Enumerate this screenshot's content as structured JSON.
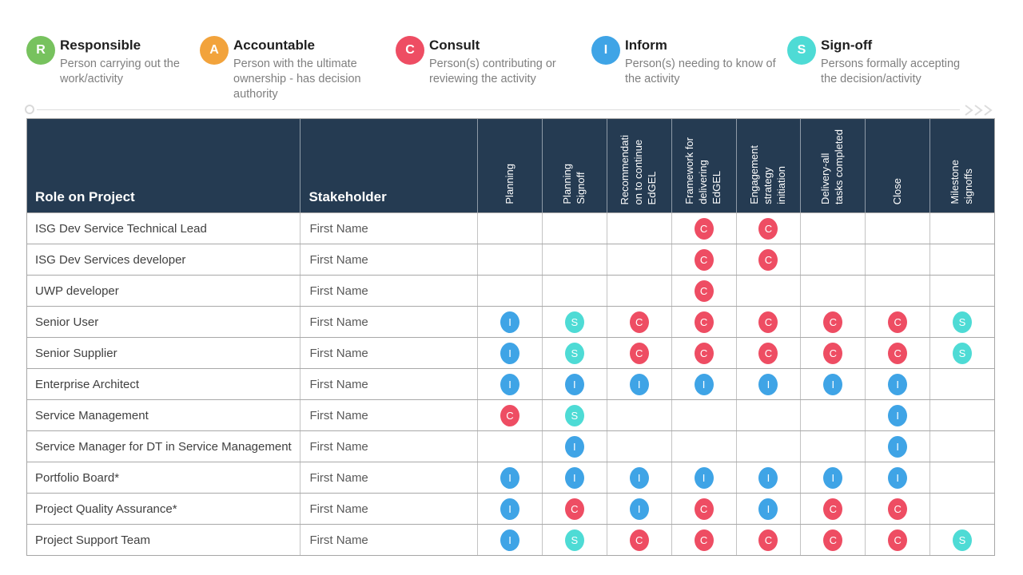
{
  "legend": {
    "items": [
      {
        "letter": "R",
        "title": "Responsible",
        "description": "Person carrying out the work/activity",
        "color": "#77C25E"
      },
      {
        "letter": "A",
        "title": "Accountable",
        "description": "Person with the ultimate ownership - has decision authority",
        "color": "#F2A33C"
      },
      {
        "letter": "C",
        "title": "Consult",
        "description": "Person(s) contributing or reviewing the activity",
        "color": "#EE4D63"
      },
      {
        "letter": "I",
        "title": "Inform",
        "description": "Person(s) needing to know of the activity",
        "color": "#3FA4E6"
      },
      {
        "letter": "S",
        "title": "Sign-off",
        "description": "Persons formally accepting the decision/activity",
        "color": "#4EDBD5"
      }
    ]
  },
  "table": {
    "role_header": "Role on Project",
    "stakeholder_header": "Stakeholder",
    "activity_columns": [
      "Planning",
      "Planning\nSignoff",
      "Recommendati\non to continue\nEdGEL",
      "Framework for\ndelivering\nEdGEL",
      "Engagement\nstrategy\ninitiation",
      "Delivery-all\ntasks completed",
      "Close",
      "Milestone\nsignoffs"
    ],
    "rows": [
      {
        "role": "ISG Dev Service Technical Lead",
        "stakeholder": "First Name",
        "cells": [
          "",
          "",
          "",
          "C",
          "C",
          "",
          "",
          ""
        ]
      },
      {
        "role": "ISG Dev Services developer",
        "stakeholder": "First Name",
        "cells": [
          "",
          "",
          "",
          "C",
          "C",
          "",
          "",
          ""
        ]
      },
      {
        "role": "UWP developer",
        "stakeholder": "First Name",
        "cells": [
          "",
          "",
          "",
          "C",
          "",
          "",
          "",
          ""
        ]
      },
      {
        "role": "Senior User",
        "stakeholder": "First Name",
        "cells": [
          "I",
          "S",
          "C",
          "C",
          "C",
          "C",
          "C",
          "S"
        ]
      },
      {
        "role": "Senior Supplier",
        "stakeholder": "First Name",
        "cells": [
          "I",
          "S",
          "C",
          "C",
          "C",
          "C",
          "C",
          "S"
        ]
      },
      {
        "role": "Enterprise Architect",
        "stakeholder": "First Name",
        "cells": [
          "I",
          "I",
          "I",
          "I",
          "I",
          "I",
          "I",
          ""
        ]
      },
      {
        "role": "Service Management",
        "stakeholder": "First Name",
        "cells": [
          "C",
          "S",
          "",
          "",
          "",
          "",
          "I",
          ""
        ]
      },
      {
        "role": "Service Manager for DT in Service Management",
        "stakeholder": "First Name",
        "cells": [
          "",
          "I",
          "",
          "",
          "",
          "",
          "I",
          ""
        ]
      },
      {
        "role": "Portfolio Board*",
        "stakeholder": "First Name",
        "cells": [
          "I",
          "I",
          "I",
          "I",
          "I",
          "I",
          "I",
          ""
        ]
      },
      {
        "role": "Project Quality Assurance*",
        "stakeholder": "First Name",
        "cells": [
          "I",
          "C",
          "I",
          "C",
          "I",
          "C",
          "C",
          ""
        ]
      },
      {
        "role": "Project Support Team",
        "stakeholder": "First Name",
        "cells": [
          "I",
          "S",
          "C",
          "C",
          "C",
          "C",
          "C",
          "S"
        ]
      }
    ]
  },
  "badge_colors": {
    "R": "#77C25E",
    "A": "#F2A33C",
    "C": "#EE4D63",
    "I": "#3FA4E6",
    "S": "#4EDBD5"
  },
  "theme": {
    "header_bg": "#253B52",
    "header_text": "#FFFFFF",
    "grid_line": "#A8A8A8",
    "column_line": "#C3C3C3",
    "timeline_color": "#D9D9D9"
  }
}
